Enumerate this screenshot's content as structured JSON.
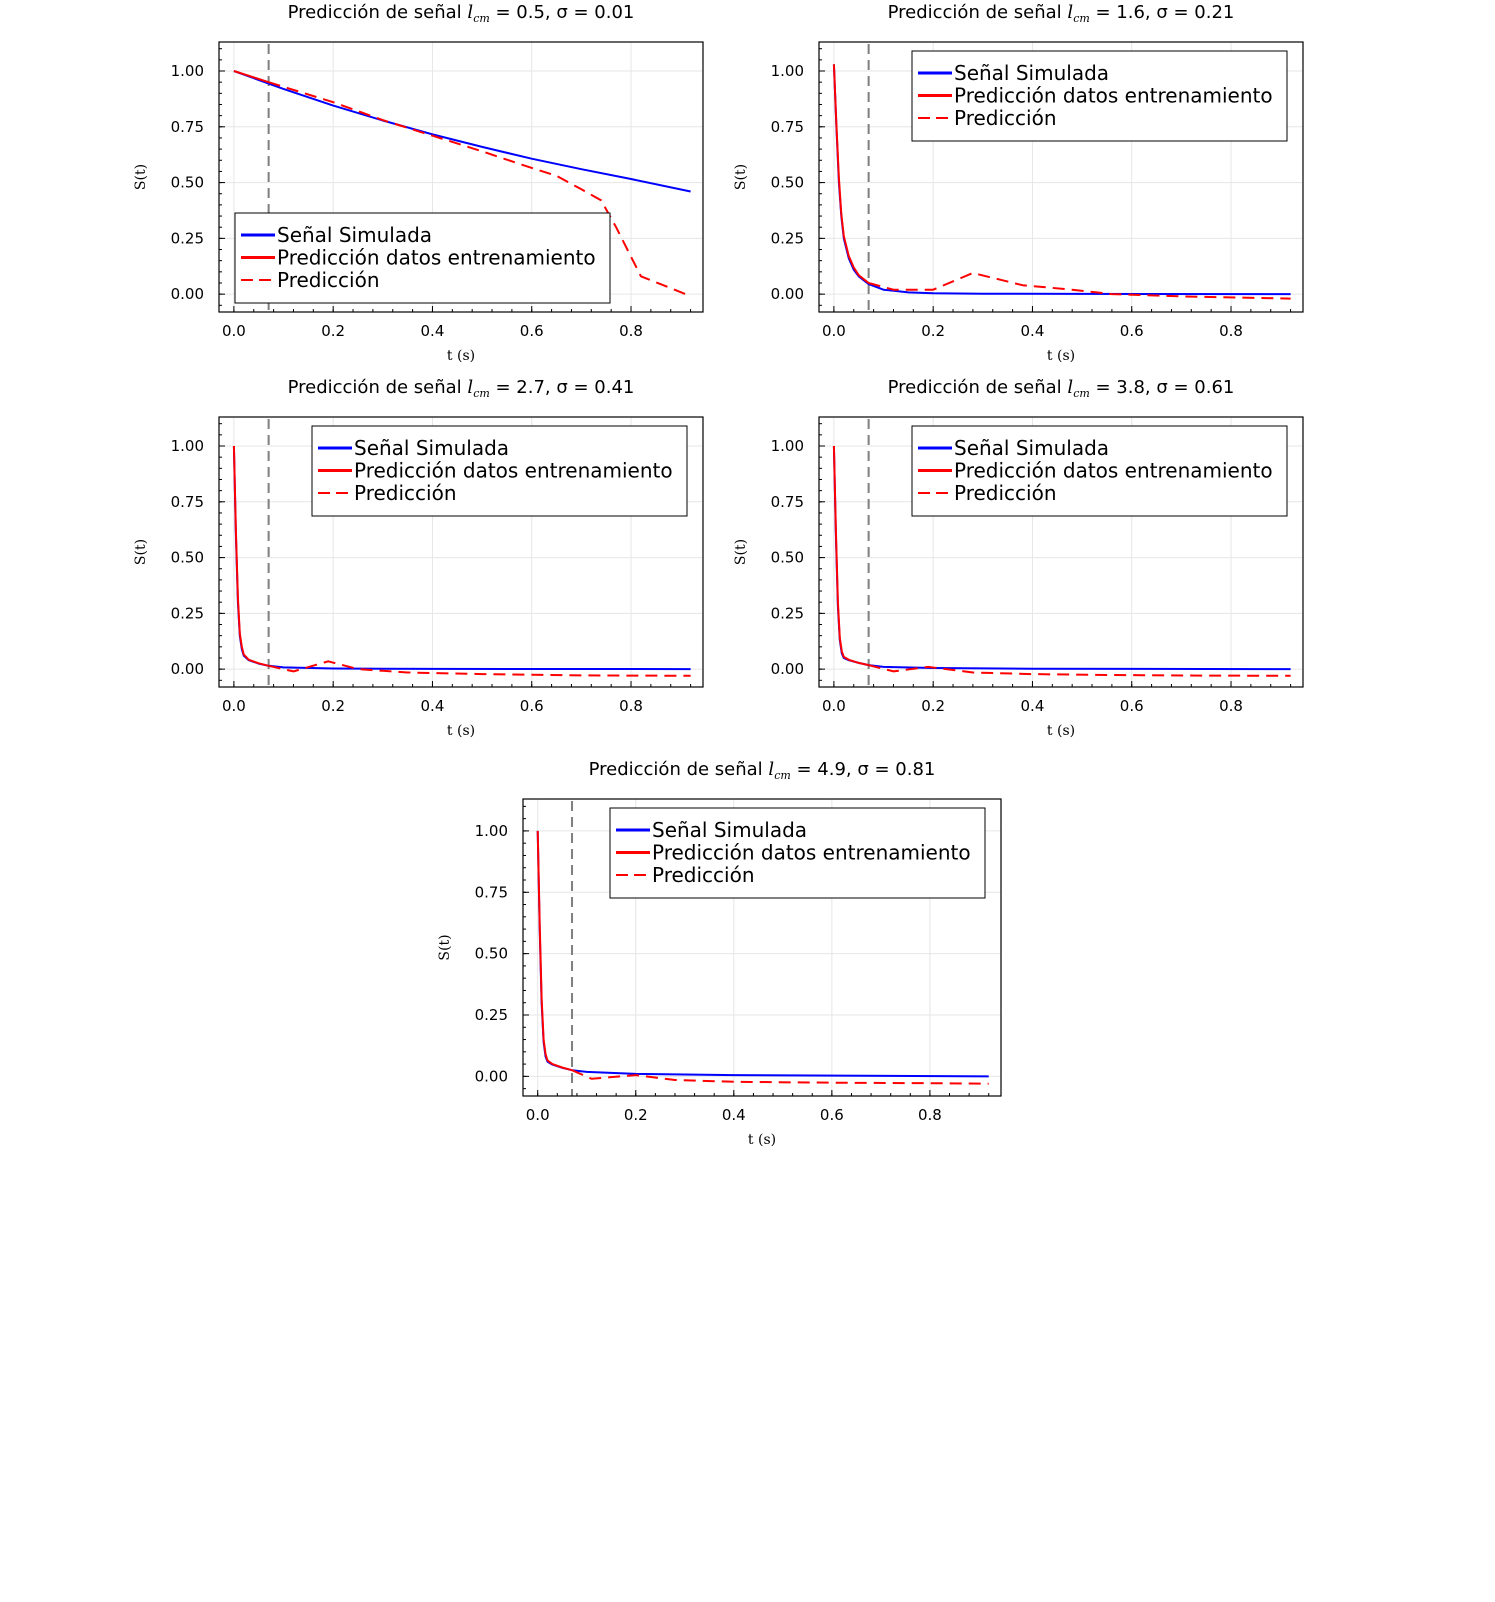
{
  "chart_data": [
    {
      "type": "line",
      "title_prefix": "Predicción de señal",
      "title_l": "l",
      "title_l_sub": "cm",
      "title_rest": " = 0.5, σ = 0.01",
      "xlabel": "t (s)",
      "ylabel": "S(t)",
      "xlim": [
        -0.03,
        0.945
      ],
      "ylim": [
        -0.08,
        1.13
      ],
      "xticks": [
        "0.0",
        "0.2",
        "0.4",
        "0.6",
        "0.8"
      ],
      "yticks": [
        "0.00",
        "0.25",
        "0.50",
        "0.75",
        "1.00"
      ],
      "vline_x": 0.07,
      "legend_position": "bottom-left",
      "series": [
        {
          "name": "Señal Simulada",
          "color": "#0000ff",
          "style": "solid",
          "x": [
            0.0,
            0.1,
            0.2,
            0.3,
            0.4,
            0.5,
            0.6,
            0.7,
            0.8,
            0.92
          ],
          "y": [
            1.0,
            0.92,
            0.845,
            0.778,
            0.716,
            0.66,
            0.607,
            0.56,
            0.516,
            0.46
          ]
        },
        {
          "name": "Predicción datos entrenamiento",
          "color": "#ff0000",
          "style": "solid",
          "x": [
            0.0,
            0.035,
            0.07
          ],
          "y": [
            1.0,
            0.975,
            0.95
          ]
        },
        {
          "name": "Predicción",
          "color": "#ff0000",
          "style": "dashed",
          "x": [
            0.07,
            0.2,
            0.3,
            0.4,
            0.5,
            0.58,
            0.65,
            0.7,
            0.74,
            0.77,
            0.82,
            0.91
          ],
          "y": [
            0.95,
            0.86,
            0.78,
            0.71,
            0.64,
            0.58,
            0.53,
            0.47,
            0.42,
            0.3,
            0.08,
            0.0
          ]
        }
      ]
    },
    {
      "type": "line",
      "title_prefix": "Predicción de señal",
      "title_l": "l",
      "title_l_sub": "cm",
      "title_rest": " = 1.6, σ = 0.21",
      "xlabel": "t (s)",
      "ylabel": "S(t)",
      "xlim": [
        -0.03,
        0.945
      ],
      "ylim": [
        -0.08,
        1.13
      ],
      "xticks": [
        "0.0",
        "0.2",
        "0.4",
        "0.6",
        "0.8"
      ],
      "yticks": [
        "0.00",
        "0.25",
        "0.50",
        "0.75",
        "1.00"
      ],
      "vline_x": 0.07,
      "legend_position": "top-right",
      "series": [
        {
          "name": "Señal Simulada",
          "color": "#0000ff",
          "style": "solid",
          "x": [
            0.0,
            0.005,
            0.01,
            0.015,
            0.02,
            0.03,
            0.04,
            0.05,
            0.07,
            0.1,
            0.15,
            0.2,
            0.3,
            0.5,
            0.92
          ],
          "y": [
            1.03,
            0.75,
            0.5,
            0.35,
            0.25,
            0.16,
            0.11,
            0.08,
            0.045,
            0.02,
            0.008,
            0.004,
            0.002,
            0.001,
            0.0
          ]
        },
        {
          "name": "Predicción datos entrenamiento",
          "color": "#ff0000",
          "style": "solid",
          "x": [
            0.0,
            0.005,
            0.01,
            0.015,
            0.02,
            0.03,
            0.04,
            0.05,
            0.07
          ],
          "y": [
            1.03,
            0.76,
            0.52,
            0.36,
            0.26,
            0.17,
            0.12,
            0.085,
            0.05
          ]
        },
        {
          "name": "Predicción",
          "color": "#ff0000",
          "style": "dashed",
          "x": [
            0.07,
            0.12,
            0.2,
            0.28,
            0.38,
            0.48,
            0.56,
            0.7,
            0.92
          ],
          "y": [
            0.05,
            0.02,
            0.02,
            0.095,
            0.04,
            0.02,
            0.0,
            -0.01,
            -0.02
          ]
        }
      ]
    },
    {
      "type": "line",
      "title_prefix": "Predicción de señal",
      "title_l": "l",
      "title_l_sub": "cm",
      "title_rest": " = 2.7, σ = 0.41",
      "xlabel": "t (s)",
      "ylabel": "S(t)",
      "xlim": [
        -0.03,
        0.945
      ],
      "ylim": [
        -0.08,
        1.13
      ],
      "xticks": [
        "0.0",
        "0.2",
        "0.4",
        "0.6",
        "0.8"
      ],
      "yticks": [
        "0.00",
        "0.25",
        "0.50",
        "0.75",
        "1.00"
      ],
      "vline_x": 0.07,
      "legend_position": "top-right",
      "series": [
        {
          "name": "Señal Simulada",
          "color": "#0000ff",
          "style": "solid",
          "x": [
            0.0,
            0.004,
            0.008,
            0.012,
            0.016,
            0.02,
            0.03,
            0.05,
            0.07,
            0.1,
            0.2,
            0.4,
            0.92
          ],
          "y": [
            1.0,
            0.6,
            0.3,
            0.15,
            0.09,
            0.06,
            0.04,
            0.025,
            0.015,
            0.008,
            0.003,
            0.001,
            0.0
          ]
        },
        {
          "name": "Predicción datos entrenamiento",
          "color": "#ff0000",
          "style": "solid",
          "x": [
            0.0,
            0.004,
            0.008,
            0.012,
            0.016,
            0.02,
            0.03,
            0.05,
            0.07
          ],
          "y": [
            1.0,
            0.62,
            0.32,
            0.16,
            0.1,
            0.065,
            0.042,
            0.026,
            0.015
          ]
        },
        {
          "name": "Predicción",
          "color": "#ff0000",
          "style": "dashed",
          "x": [
            0.07,
            0.12,
            0.19,
            0.25,
            0.35,
            0.5,
            0.7,
            0.92
          ],
          "y": [
            0.015,
            -0.01,
            0.035,
            0.0,
            -0.015,
            -0.022,
            -0.028,
            -0.03
          ]
        }
      ]
    },
    {
      "type": "line",
      "title_prefix": "Predicción de señal",
      "title_l": "l",
      "title_l_sub": "cm",
      "title_rest": " = 3.8, σ = 0.61",
      "xlabel": "t (s)",
      "ylabel": "S(t)",
      "xlim": [
        -0.03,
        0.945
      ],
      "ylim": [
        -0.08,
        1.13
      ],
      "xticks": [
        "0.0",
        "0.2",
        "0.4",
        "0.6",
        "0.8"
      ],
      "yticks": [
        "0.00",
        "0.25",
        "0.50",
        "0.75",
        "1.00"
      ],
      "vline_x": 0.07,
      "legend_position": "top-right",
      "series": [
        {
          "name": "Señal Simulada",
          "color": "#0000ff",
          "style": "solid",
          "x": [
            0.0,
            0.004,
            0.008,
            0.012,
            0.016,
            0.02,
            0.03,
            0.05,
            0.07,
            0.1,
            0.2,
            0.4,
            0.92
          ],
          "y": [
            1.0,
            0.6,
            0.28,
            0.13,
            0.07,
            0.05,
            0.04,
            0.028,
            0.018,
            0.01,
            0.005,
            0.002,
            0.0
          ]
        },
        {
          "name": "Predicción datos entrenamiento",
          "color": "#ff0000",
          "style": "solid",
          "x": [
            0.0,
            0.004,
            0.008,
            0.012,
            0.016,
            0.02,
            0.03,
            0.05,
            0.07
          ],
          "y": [
            1.0,
            0.62,
            0.3,
            0.14,
            0.08,
            0.055,
            0.042,
            0.028,
            0.018
          ]
        },
        {
          "name": "Predicción",
          "color": "#ff0000",
          "style": "dashed",
          "x": [
            0.07,
            0.12,
            0.19,
            0.28,
            0.4,
            0.55,
            0.75,
            0.92
          ],
          "y": [
            0.018,
            -0.01,
            0.01,
            -0.015,
            -0.022,
            -0.026,
            -0.029,
            -0.03
          ]
        }
      ]
    },
    {
      "type": "line",
      "title_prefix": "Predicción de señal",
      "title_l": "l",
      "title_l_sub": "cm",
      "title_rest": " = 4.9, σ = 0.81",
      "xlabel": "t (s)",
      "ylabel": "S(t)",
      "xlim": [
        -0.03,
        0.945
      ],
      "ylim": [
        -0.08,
        1.13
      ],
      "xticks": [
        "0.0",
        "0.2",
        "0.4",
        "0.6",
        "0.8"
      ],
      "yticks": [
        "0.00",
        "0.25",
        "0.50",
        "0.75",
        "1.00"
      ],
      "vline_x": 0.07,
      "legend_position": "top-right",
      "series": [
        {
          "name": "Señal Simulada",
          "color": "#0000ff",
          "style": "solid",
          "x": [
            0.0,
            0.004,
            0.008,
            0.012,
            0.016,
            0.02,
            0.03,
            0.05,
            0.07,
            0.1,
            0.2,
            0.4,
            0.92
          ],
          "y": [
            1.0,
            0.6,
            0.3,
            0.14,
            0.08,
            0.06,
            0.048,
            0.035,
            0.025,
            0.018,
            0.01,
            0.005,
            0.0
          ]
        },
        {
          "name": "Predicción datos entrenamiento",
          "color": "#ff0000",
          "style": "solid",
          "x": [
            0.0,
            0.004,
            0.008,
            0.012,
            0.016,
            0.02,
            0.03,
            0.05,
            0.07
          ],
          "y": [
            1.0,
            0.62,
            0.32,
            0.15,
            0.09,
            0.065,
            0.05,
            0.036,
            0.025
          ]
        },
        {
          "name": "Predicción",
          "color": "#ff0000",
          "style": "dashed",
          "x": [
            0.07,
            0.11,
            0.2,
            0.28,
            0.4,
            0.6,
            0.8,
            0.92
          ],
          "y": [
            0.025,
            -0.01,
            0.005,
            -0.015,
            -0.022,
            -0.026,
            -0.028,
            -0.03
          ]
        }
      ]
    }
  ]
}
